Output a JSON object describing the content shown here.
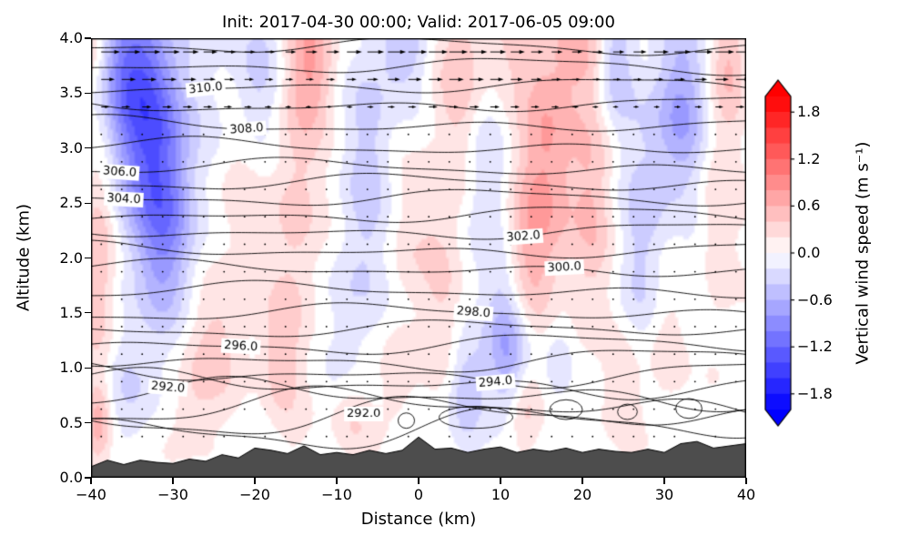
{
  "chart_data": {
    "type": "heatmap",
    "title": "Init: 2017-04-30 00:00; Valid: 2017-06-05 09:00",
    "xlabel": "Distance (km)",
    "ylabel": "Altitude (km)",
    "xlim": [
      -40,
      40
    ],
    "ylim": [
      0,
      4
    ],
    "xticks": [
      {
        "v": -40,
        "label": "−40"
      },
      {
        "v": -30,
        "label": "−30"
      },
      {
        "v": -20,
        "label": "−20"
      },
      {
        "v": -10,
        "label": "−10"
      },
      {
        "v": 0,
        "label": "0"
      },
      {
        "v": 10,
        "label": "10"
      },
      {
        "v": 20,
        "label": "20"
      },
      {
        "v": 30,
        "label": "30"
      },
      {
        "v": 40,
        "label": "40"
      }
    ],
    "yticks": [
      {
        "v": 0.0,
        "label": "0.0"
      },
      {
        "v": 0.5,
        "label": "0.5"
      },
      {
        "v": 1.0,
        "label": "1.0"
      },
      {
        "v": 1.5,
        "label": "1.5"
      },
      {
        "v": 2.0,
        "label": "2.0"
      },
      {
        "v": 2.5,
        "label": "2.5"
      },
      {
        "v": 3.0,
        "label": "3.0"
      },
      {
        "v": 3.5,
        "label": "3.5"
      },
      {
        "v": 4.0,
        "label": "4.0"
      }
    ],
    "colorbar": {
      "label": "Vertical wind speed (m s⁻¹)",
      "vmin": -2.0,
      "vmax": 2.0,
      "level_step": 0.2,
      "extend": "both",
      "cmap": "bwr",
      "ticks": [
        {
          "v": 1.8,
          "label": "1.8"
        },
        {
          "v": 1.2,
          "label": "1.2"
        },
        {
          "v": 0.6,
          "label": "0.6"
        },
        {
          "v": 0.0,
          "label": "0.0"
        },
        {
          "v": -0.6,
          "label": "−0.6"
        },
        {
          "v": -1.2,
          "label": "−1.2"
        },
        {
          "v": -1.8,
          "label": "−1.8"
        }
      ]
    },
    "contours": {
      "variable": "potential temperature (K)",
      "levels": [
        289,
        290,
        291,
        292,
        293,
        294,
        295,
        296,
        297,
        298,
        299,
        300,
        301,
        302,
        303,
        304,
        305,
        306,
        307,
        308,
        309,
        310,
        311,
        312
      ],
      "base_altitude": [
        0.45,
        0.55,
        0.65,
        0.75,
        0.85,
        0.94,
        1.07,
        1.21,
        1.35,
        1.5,
        1.7,
        1.9,
        2.07,
        2.24,
        2.39,
        2.54,
        2.68,
        2.82,
        3.01,
        3.21,
        3.39,
        3.56,
        3.74,
        3.92
      ],
      "wiggle": {
        "amp": [
          0.045,
          0.035,
          0.018
        ],
        "wavelength": [
          7,
          13.5,
          3.7
        ],
        "phase": [
          1.7,
          0.9,
          2.6
        ],
        "low_start": 297,
        "low_factor": 0.18,
        "max_factor": 2.6
      },
      "labels": [
        {
          "text": "310.0",
          "level": 310,
          "x": -26,
          "rotation": -6
        },
        {
          "text": "308.0",
          "level": 308,
          "x": -21,
          "rotation": -4
        },
        {
          "text": "306.0",
          "level": 306,
          "x": -36.5,
          "rotation": 4
        },
        {
          "text": "304.0",
          "level": 304,
          "x": -36,
          "rotation": 3
        },
        {
          "text": "302.0",
          "level": 302,
          "x": 12.8,
          "rotation": -4
        },
        {
          "text": "300.0",
          "level": 300,
          "x": 17.8,
          "rotation": -3
        },
        {
          "text": "298.0",
          "level": 298,
          "x": 6.7,
          "rotation": 5
        },
        {
          "text": "296.0",
          "level": 296,
          "x": -21.7,
          "rotation": 3
        },
        {
          "text": "294.0",
          "level": 294,
          "x": 9.4,
          "rotation": -5
        },
        {
          "text": "292.0",
          "level": 292,
          "x": -30.6,
          "rotation": 5
        },
        {
          "text": "292.0",
          "level": 292,
          "x": -6.7,
          "z": 0.58,
          "rotation": 0
        }
      ],
      "closed": [
        [
          7,
          0.55,
          4.5,
          0.1
        ],
        [
          18,
          0.62,
          2.0,
          0.09
        ],
        [
          25.5,
          0.6,
          1.2,
          0.07
        ],
        [
          33,
          0.63,
          1.6,
          0.09
        ],
        [
          -1.5,
          0.52,
          1.0,
          0.07
        ]
      ]
    },
    "w_blobs": [
      [
        -33,
        3.2,
        -1.1,
        3.5,
        0.7
      ],
      [
        -36,
        3.8,
        -0.6,
        3,
        0.5
      ],
      [
        -31,
        2.2,
        -0.7,
        2.5,
        0.6
      ],
      [
        -20,
        3.6,
        -0.45,
        2.5,
        0.5
      ],
      [
        -40,
        3.9,
        0.45,
        1.5,
        0.35
      ],
      [
        -39,
        2.0,
        0.55,
        1.5,
        0.9
      ],
      [
        -15,
        2.6,
        0.4,
        2.2,
        1.3
      ],
      [
        -13,
        3.8,
        0.55,
        2,
        0.4
      ],
      [
        -25,
        1.2,
        0.35,
        3,
        0.4
      ],
      [
        -22,
        2.6,
        0.25,
        2,
        0.8
      ],
      [
        -6,
        2.9,
        -0.4,
        2,
        0.8
      ],
      [
        -2,
        3.9,
        -0.45,
        2,
        0.3
      ],
      [
        1,
        2.3,
        0.3,
        2.5,
        0.5
      ],
      [
        5,
        3.6,
        0.4,
        2,
        0.6
      ],
      [
        8,
        2.6,
        -0.3,
        2,
        0.7
      ],
      [
        11,
        1.2,
        -0.8,
        2,
        0.45
      ],
      [
        13,
        0.6,
        0.45,
        1.5,
        0.3
      ],
      [
        16,
        3.0,
        0.7,
        2.5,
        0.9
      ],
      [
        13,
        1.9,
        0.5,
        1.8,
        0.6
      ],
      [
        21,
        2.4,
        0.45,
        1.8,
        0.8
      ],
      [
        20,
        3.9,
        0.35,
        2,
        0.3
      ],
      [
        24,
        3.8,
        -0.45,
        1.5,
        0.4
      ],
      [
        27,
        2.0,
        -0.35,
        2,
        0.9
      ],
      [
        32,
        3.3,
        -0.75,
        2.5,
        0.6
      ],
      [
        30,
        1.2,
        0.3,
        2,
        0.5
      ],
      [
        36,
        2.4,
        0.35,
        2,
        0.9
      ],
      [
        38,
        3.8,
        0.45,
        1.5,
        0.4
      ],
      [
        -35,
        0.9,
        -0.3,
        2.5,
        0.4
      ],
      [
        -39,
        0.5,
        0.45,
        1,
        0.25
      ],
      [
        -28,
        0.6,
        0.25,
        2,
        0.3
      ],
      [
        -17,
        1.1,
        0.3,
        1.5,
        0.35
      ],
      [
        -9,
        1.5,
        -0.25,
        2,
        0.5
      ],
      [
        -3,
        0.9,
        0.3,
        1.5,
        0.3
      ],
      [
        3,
        1.5,
        0.3,
        1.5,
        0.5
      ],
      [
        6,
        0.8,
        -0.45,
        1.5,
        0.3
      ],
      [
        17,
        1.1,
        -0.3,
        1.5,
        0.4
      ],
      [
        25,
        0.8,
        0.35,
        1.8,
        0.35
      ],
      [
        34,
        1.6,
        -0.25,
        1.5,
        0.5
      ],
      [
        10,
        3.9,
        0.3,
        3,
        0.3
      ],
      [
        -8,
        0.5,
        0.25,
        2,
        0.25
      ]
    ],
    "noise": {
      "amp": 0.1,
      "a1": 2.1,
      "a2": 4.3,
      "a3": 3.7,
      "a4": 2.9
    },
    "terrain": {
      "color": "#4d4d4d",
      "x": [
        -40,
        -38,
        -36,
        -34,
        -32,
        -30,
        -28,
        -26,
        -24,
        -22,
        -20,
        -18,
        -16,
        -14,
        -12,
        -10,
        -8,
        -6,
        -4,
        -2,
        0,
        2,
        4,
        6,
        8,
        10,
        12,
        14,
        16,
        18,
        20,
        22,
        24,
        26,
        28,
        30,
        32,
        34,
        36,
        38,
        40
      ],
      "z": [
        0.1,
        0.16,
        0.12,
        0.16,
        0.14,
        0.13,
        0.17,
        0.15,
        0.21,
        0.18,
        0.27,
        0.25,
        0.22,
        0.29,
        0.21,
        0.23,
        0.21,
        0.25,
        0.22,
        0.25,
        0.37,
        0.26,
        0.27,
        0.23,
        0.26,
        0.28,
        0.23,
        0.26,
        0.24,
        0.27,
        0.23,
        0.26,
        0.24,
        0.23,
        0.26,
        0.23,
        0.31,
        0.33,
        0.27,
        0.29,
        0.31
      ],
      "base": 0.0
    },
    "quiver": {
      "x0": -38.75,
      "dx": 2.5,
      "z0": 0.125,
      "dz": 0.25,
      "scale": 1.6,
      "dot_radius": 0.9,
      "u_base": 0.8,
      "shear_z": 3.0,
      "shear_rate": 9,
      "mod_amp": 0.35,
      "mod_kx": 6,
      "mod_kz": 2
    }
  }
}
